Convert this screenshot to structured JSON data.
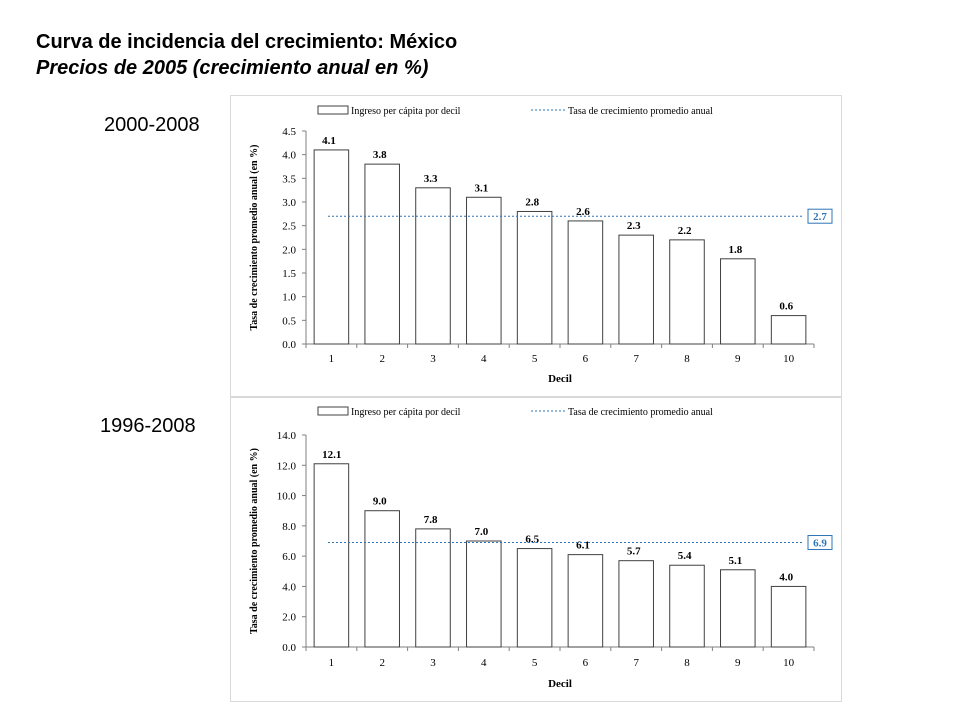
{
  "title": "Curva de incidencia del crecimiento: México",
  "subtitle": "Precios de 2005 (crecimiento anual en %)",
  "colors": {
    "bars_fill": "#ffffff",
    "bars_stroke": "#404040",
    "average_line": "#2e75b6",
    "text": "#000000"
  },
  "chart_data": [
    {
      "type": "bar",
      "period_label": "2000-2008",
      "categories": [
        "1",
        "2",
        "3",
        "4",
        "5",
        "6",
        "7",
        "8",
        "9",
        "10"
      ],
      "series": [
        {
          "name": "Ingreso per cápita por decil",
          "values": [
            4.1,
            3.8,
            3.3,
            3.1,
            2.8,
            2.6,
            2.3,
            2.2,
            1.8,
            0.6
          ]
        }
      ],
      "data_labels": [
        "4.1",
        "3.8",
        "3.3",
        "3.1",
        "2.8",
        "2.6",
        "2.3",
        "2.2",
        "1.8",
        "0.6"
      ],
      "average": {
        "name": "Tasa de crecimiento promedio anual",
        "value": 2.7,
        "label": "2.7"
      },
      "xlabel": "Decil",
      "ylabel": "Tasa de crecimiento promedio anual (en %)",
      "ylim": [
        0,
        4.5
      ],
      "yticks": [
        "0.0",
        "0.5",
        "1.0",
        "1.5",
        "2.0",
        "2.5",
        "3.0",
        "3.5",
        "4.0",
        "4.5"
      ],
      "ytick_values": [
        0,
        0.5,
        1,
        1.5,
        2,
        2.5,
        3,
        3.5,
        4,
        4.5
      ],
      "grid": false,
      "legend_position": "top"
    },
    {
      "type": "bar",
      "period_label": "1996-2008",
      "categories": [
        "1",
        "2",
        "3",
        "4",
        "5",
        "6",
        "7",
        "8",
        "9",
        "10"
      ],
      "series": [
        {
          "name": "Ingreso per cápita por decil",
          "values": [
            12.1,
            9.0,
            7.8,
            7.0,
            6.5,
            6.1,
            5.7,
            5.4,
            5.1,
            4.0
          ]
        }
      ],
      "data_labels": [
        "12.1",
        "9.0",
        "7.8",
        "7.0",
        "6.5",
        "6.1",
        "5.7",
        "5.4",
        "5.1",
        "4.0"
      ],
      "average": {
        "name": "Tasa de crecimiento promedio anual",
        "value": 6.9,
        "label": "6.9"
      },
      "xlabel": "Decil",
      "ylabel": "Tasa de crecimiento promedio anual (en %)",
      "ylim": [
        0,
        14
      ],
      "yticks": [
        "0.0",
        "2.0",
        "4.0",
        "6.0",
        "8.0",
        "10.0",
        "12.0",
        "14.0"
      ],
      "ytick_values": [
        0,
        2,
        4,
        6,
        8,
        10,
        12,
        14
      ],
      "grid": false,
      "legend_position": "top"
    }
  ]
}
